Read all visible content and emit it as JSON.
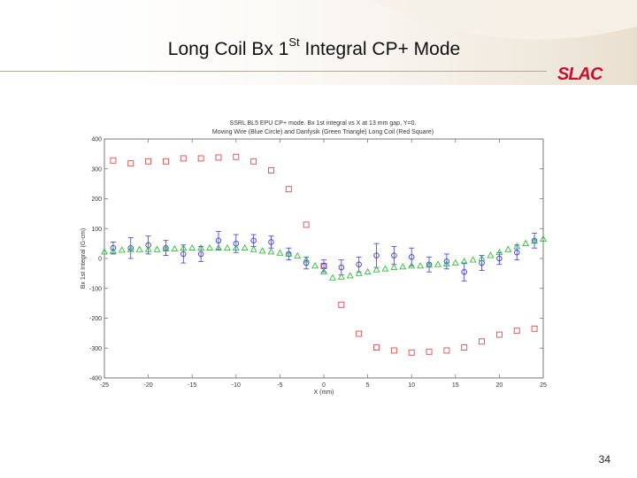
{
  "slide": {
    "title_main": "Long Coil Bx 1",
    "title_sup": "St",
    "title_rest": " Integral CP+ Mode",
    "logo_text": "SLAC",
    "page_number": "34"
  },
  "colors": {
    "header_band": "#efe8dc",
    "rule": "#b9a890",
    "logo_red": "#c8102e",
    "moving_wire": "#3b3bd6",
    "danfysik": "#2fbf3a",
    "long_coil": "#e24a4a"
  },
  "chart_data": {
    "type": "scatter",
    "title": "SSRL BL5 EPU CP+ mode. Bx 1st integral vs X at 13 mm gap, Y=0.",
    "subtitle": "Moving Wire (Blue Circle) and Danfysik (Green Triangle) Long Coil (Red Square)",
    "xlabel": "X (mm)",
    "ylabel": "Bx 1st Integral (G-cm)",
    "xlim": [
      -25,
      25
    ],
    "ylim": [
      -400,
      400
    ],
    "xticks": [
      -25,
      -20,
      -15,
      -10,
      -5,
      0,
      5,
      10,
      15,
      20,
      25
    ],
    "yticks": [
      400,
      300,
      200,
      100,
      0,
      -100,
      -200,
      -300,
      -400
    ],
    "grid": false,
    "series": [
      {
        "name": "Long Coil",
        "marker": "square",
        "color": "#e24a4a",
        "x": [
          -24,
          -22,
          -20,
          -18,
          -16,
          -14,
          -12,
          -10,
          -8,
          -6,
          -4,
          -2,
          0,
          2,
          4,
          6,
          8,
          10,
          12,
          14,
          16,
          18,
          20,
          22,
          24
        ],
        "y": [
          328,
          318,
          325,
          325,
          335,
          335,
          338,
          340,
          325,
          295,
          232,
          113,
          -25,
          -155,
          -252,
          -298,
          -308,
          -315,
          -312,
          -308,
          -298,
          -278,
          -255,
          -242,
          -235
        ]
      },
      {
        "name": "Moving Wire",
        "marker": "circle",
        "color": "#3b3bd6",
        "x": [
          -24,
          -22,
          -20,
          -18,
          -16,
          -14,
          -12,
          -10,
          -8,
          -6,
          -4,
          -2,
          0,
          2,
          4,
          6,
          8,
          10,
          12,
          14,
          16,
          18,
          20,
          22,
          24
        ],
        "y": [
          35,
          35,
          45,
          35,
          15,
          15,
          60,
          50,
          60,
          55,
          15,
          -15,
          -25,
          -30,
          -20,
          10,
          10,
          5,
          -20,
          -10,
          -45,
          -15,
          0,
          20,
          60
        ],
        "err": [
          20,
          35,
          30,
          25,
          30,
          25,
          30,
          30,
          20,
          20,
          20,
          20,
          20,
          25,
          25,
          40,
          30,
          30,
          25,
          25,
          30,
          25,
          20,
          25,
          25
        ]
      },
      {
        "name": "Danfysik",
        "marker": "triangle",
        "color": "#2fbf3a",
        "x": [
          -25,
          -24,
          -23,
          -22,
          -21,
          -20,
          -19,
          -18,
          -17,
          -16,
          -15,
          -14,
          -13,
          -12,
          -11,
          -10,
          -9,
          -8,
          -7,
          -6,
          -5,
          -4,
          -3,
          -2,
          -1,
          0,
          1,
          2,
          3,
          4,
          5,
          6,
          7,
          8,
          9,
          10,
          11,
          12,
          13,
          14,
          15,
          16,
          17,
          18,
          19,
          20,
          21,
          22,
          23,
          24,
          25
        ],
        "y": [
          22,
          25,
          28,
          30,
          30,
          30,
          30,
          32,
          32,
          35,
          35,
          35,
          35,
          35,
          35,
          35,
          35,
          30,
          25,
          22,
          18,
          15,
          8,
          -5,
          -25,
          -45,
          -65,
          -62,
          -58,
          -50,
          -45,
          -38,
          -35,
          -30,
          -28,
          -25,
          -25,
          -22,
          -20,
          -18,
          -15,
          -10,
          -5,
          0,
          10,
          20,
          30,
          40,
          50,
          58,
          65
        ]
      }
    ]
  }
}
